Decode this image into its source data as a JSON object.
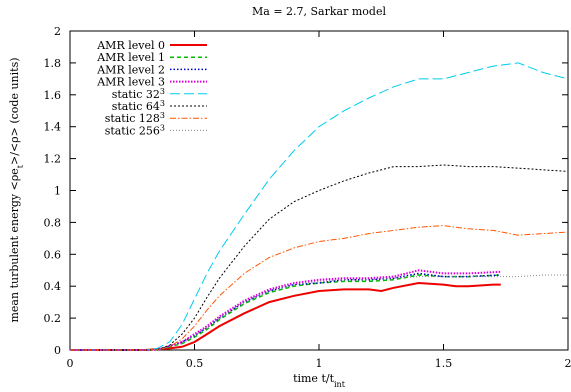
{
  "chart_data": {
    "type": "line",
    "title": "Ma = 2.7, Sarkar model",
    "xlabel": "time t/t",
    "xlabel_sub": "int",
    "ylabel": "mean turbulent energy <ρe",
    "ylabel_sub": "t",
    "ylabel_tail": ">/<ρ> (code units)",
    "xlim": [
      0,
      2
    ],
    "ylim": [
      0,
      2
    ],
    "xticks": [
      "0",
      "0.5",
      "1",
      "1.5",
      "2"
    ],
    "xtick_values": [
      0,
      0.5,
      1,
      1.5,
      2
    ],
    "yticks": [
      "0",
      "0.2",
      "0.4",
      "0.6",
      "0.8",
      "1",
      "1.2",
      "1.4",
      "1.6",
      "1.8",
      "2"
    ],
    "ytick_values": [
      0,
      0.2,
      0.4,
      0.6,
      0.8,
      1,
      1.2,
      1.4,
      1.6,
      1.8,
      2
    ],
    "grid": false,
    "legend_position": "top-left",
    "series": [
      {
        "name": "AMR level 0",
        "sup": "",
        "color": "#ee0000",
        "dash": "",
        "width": 2,
        "x": [
          0,
          0.3,
          0.4,
          0.45,
          0.5,
          0.55,
          0.6,
          0.7,
          0.8,
          0.9,
          1.0,
          1.1,
          1.2,
          1.25,
          1.3,
          1.4,
          1.5,
          1.55,
          1.6,
          1.7,
          1.73
        ],
        "y": [
          0,
          0,
          0.01,
          0.02,
          0.05,
          0.1,
          0.15,
          0.23,
          0.3,
          0.34,
          0.37,
          0.38,
          0.38,
          0.37,
          0.39,
          0.42,
          0.41,
          0.4,
          0.4,
          0.41,
          0.41
        ]
      },
      {
        "name": "AMR level 1",
        "sup": "",
        "color": "#00bb00",
        "dash": "4,3",
        "width": 1.5,
        "x": [
          0,
          0.35,
          0.45,
          0.5,
          0.55,
          0.6,
          0.7,
          0.8,
          0.9,
          1.0,
          1.1,
          1.2,
          1.3,
          1.4,
          1.5,
          1.6,
          1.73
        ],
        "y": [
          0,
          0,
          0.04,
          0.08,
          0.13,
          0.19,
          0.29,
          0.36,
          0.4,
          0.42,
          0.43,
          0.43,
          0.44,
          0.47,
          0.46,
          0.46,
          0.47
        ]
      },
      {
        "name": "AMR level 2",
        "sup": "",
        "color": "#0000cc",
        "dash": "1.5,2",
        "width": 1.5,
        "x": [
          0,
          0.35,
          0.45,
          0.5,
          0.55,
          0.6,
          0.7,
          0.8,
          0.9,
          1.0,
          1.1,
          1.2,
          1.3,
          1.4,
          1.5,
          1.6,
          1.73
        ],
        "y": [
          0,
          0,
          0.05,
          0.09,
          0.14,
          0.2,
          0.3,
          0.37,
          0.41,
          0.42,
          0.44,
          0.44,
          0.45,
          0.48,
          0.46,
          0.46,
          0.47
        ]
      },
      {
        "name": "AMR level 3",
        "sup": "",
        "color": "#dd00dd",
        "dash": "1.5,1.5",
        "width": 2,
        "x": [
          0,
          0.35,
          0.45,
          0.5,
          0.55,
          0.6,
          0.7,
          0.8,
          0.9,
          1.0,
          1.1,
          1.2,
          1.3,
          1.4,
          1.5,
          1.6,
          1.73
        ],
        "y": [
          0,
          0,
          0.05,
          0.1,
          0.15,
          0.21,
          0.31,
          0.38,
          0.42,
          0.44,
          0.45,
          0.45,
          0.46,
          0.5,
          0.48,
          0.48,
          0.49
        ]
      },
      {
        "name": "static 32",
        "sup": "3",
        "color": "#00ccee",
        "dash": "10,4",
        "width": 1,
        "x": [
          0,
          0.3,
          0.35,
          0.4,
          0.45,
          0.5,
          0.55,
          0.6,
          0.7,
          0.8,
          0.9,
          1.0,
          1.1,
          1.2,
          1.3,
          1.4,
          1.5,
          1.6,
          1.7,
          1.8,
          1.9,
          2.0
        ],
        "y": [
          0,
          0,
          0.01,
          0.05,
          0.16,
          0.32,
          0.48,
          0.62,
          0.85,
          1.07,
          1.25,
          1.4,
          1.5,
          1.58,
          1.65,
          1.7,
          1.7,
          1.74,
          1.78,
          1.8,
          1.74,
          1.7
        ]
      },
      {
        "name": "static 64",
        "sup": "3",
        "color": "#000000",
        "dash": "2,2",
        "width": 1,
        "x": [
          0,
          0.35,
          0.4,
          0.45,
          0.5,
          0.55,
          0.6,
          0.7,
          0.8,
          0.9,
          1.0,
          1.1,
          1.2,
          1.3,
          1.4,
          1.5,
          1.6,
          1.7,
          1.8,
          1.9,
          2.0
        ],
        "y": [
          0,
          0,
          0.03,
          0.1,
          0.2,
          0.33,
          0.45,
          0.65,
          0.82,
          0.93,
          1.0,
          1.06,
          1.11,
          1.15,
          1.15,
          1.16,
          1.15,
          1.15,
          1.14,
          1.13,
          1.12
        ]
      },
      {
        "name": "static 128",
        "sup": "3",
        "color": "#ff5500",
        "dash": "6,2,1.5,2",
        "width": 1,
        "x": [
          0,
          0.35,
          0.4,
          0.45,
          0.5,
          0.55,
          0.6,
          0.7,
          0.8,
          0.9,
          1.0,
          1.1,
          1.2,
          1.3,
          1.4,
          1.5,
          1.6,
          1.7,
          1.8,
          1.9,
          2.0
        ],
        "y": [
          0,
          0,
          0.02,
          0.07,
          0.15,
          0.25,
          0.34,
          0.48,
          0.58,
          0.64,
          0.68,
          0.7,
          0.73,
          0.75,
          0.77,
          0.78,
          0.76,
          0.75,
          0.72,
          0.73,
          0.74
        ]
      },
      {
        "name": "static 256",
        "sup": "3",
        "color": "#888888",
        "dash": "1,2",
        "width": 1,
        "x": [
          0,
          0.35,
          0.45,
          0.5,
          0.55,
          0.6,
          0.7,
          0.8,
          0.9,
          1.0,
          1.1,
          1.2,
          1.3,
          1.4,
          1.5,
          1.6,
          1.7,
          1.8,
          1.9,
          2.0
        ],
        "y": [
          0,
          0,
          0.04,
          0.09,
          0.14,
          0.2,
          0.3,
          0.37,
          0.41,
          0.43,
          0.44,
          0.44,
          0.45,
          0.46,
          0.46,
          0.46,
          0.46,
          0.46,
          0.47,
          0.47
        ]
      }
    ]
  }
}
